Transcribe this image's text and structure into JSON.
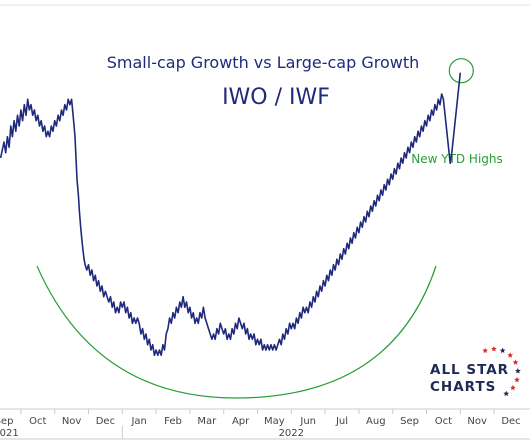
{
  "chart_data": {
    "type": "line",
    "title": "Small-cap Growth vs Large-cap Growth",
    "subtitle": "IWO / IWF",
    "xlabel": "",
    "ylabel": "",
    "x_ticks": [
      "Sep",
      "Oct",
      "Nov",
      "Dec",
      "Jan",
      "Feb",
      "Mar",
      "Apr",
      "May",
      "Jun",
      "Jul",
      "Aug",
      "Sep",
      "Oct",
      "Nov",
      "Dec"
    ],
    "x_tick_month_index": [
      0,
      1,
      2,
      3,
      4,
      5,
      6,
      7,
      8,
      9,
      10,
      11,
      12,
      13,
      14,
      15
    ],
    "year_labels": [
      {
        "label": "2021",
        "month_index": 0
      },
      {
        "label": "2022",
        "month_index": 4
      }
    ],
    "series": [
      {
        "values_month_index": [
          [
            -0.1,
            0.62
          ],
          [
            0.0,
            0.65
          ],
          [
            0.05,
            0.63
          ],
          [
            0.1,
            0.66
          ],
          [
            0.15,
            0.64
          ],
          [
            0.2,
            0.68
          ],
          [
            0.25,
            0.66
          ],
          [
            0.3,
            0.69
          ],
          [
            0.35,
            0.67
          ],
          [
            0.4,
            0.7
          ],
          [
            0.45,
            0.68
          ],
          [
            0.5,
            0.71
          ],
          [
            0.55,
            0.69
          ],
          [
            0.6,
            0.72
          ],
          [
            0.65,
            0.7
          ],
          [
            0.7,
            0.73
          ],
          [
            0.75,
            0.71
          ],
          [
            0.8,
            0.72
          ],
          [
            0.85,
            0.7
          ],
          [
            0.9,
            0.71
          ],
          [
            0.95,
            0.69
          ],
          [
            1.0,
            0.7
          ],
          [
            1.05,
            0.68
          ],
          [
            1.1,
            0.69
          ],
          [
            1.15,
            0.67
          ],
          [
            1.2,
            0.68
          ],
          [
            1.25,
            0.66
          ],
          [
            1.3,
            0.67
          ],
          [
            1.35,
            0.66
          ],
          [
            1.4,
            0.68
          ],
          [
            1.45,
            0.67
          ],
          [
            1.5,
            0.69
          ],
          [
            1.55,
            0.68
          ],
          [
            1.6,
            0.7
          ],
          [
            1.65,
            0.69
          ],
          [
            1.7,
            0.71
          ],
          [
            1.75,
            0.7
          ],
          [
            1.8,
            0.72
          ],
          [
            1.85,
            0.71
          ],
          [
            1.9,
            0.73
          ],
          [
            1.95,
            0.72
          ],
          [
            2.0,
            0.73
          ],
          [
            2.03,
            0.71
          ],
          [
            2.06,
            0.69
          ],
          [
            2.1,
            0.66
          ],
          [
            2.13,
            0.62
          ],
          [
            2.16,
            0.58
          ],
          [
            2.2,
            0.55
          ],
          [
            2.23,
            0.52
          ],
          [
            2.27,
            0.49
          ],
          [
            2.3,
            0.47
          ],
          [
            2.33,
            0.45
          ],
          [
            2.37,
            0.43
          ],
          [
            2.4,
            0.42
          ],
          [
            2.45,
            0.41
          ],
          [
            2.5,
            0.42
          ],
          [
            2.55,
            0.4
          ],
          [
            2.6,
            0.41
          ],
          [
            2.65,
            0.39
          ],
          [
            2.7,
            0.4
          ],
          [
            2.75,
            0.38
          ],
          [
            2.8,
            0.39
          ],
          [
            2.85,
            0.37
          ],
          [
            2.9,
            0.38
          ],
          [
            2.95,
            0.36
          ],
          [
            3.0,
            0.37
          ],
          [
            3.05,
            0.36
          ],
          [
            3.1,
            0.35
          ],
          [
            3.15,
            0.36
          ],
          [
            3.2,
            0.34
          ],
          [
            3.25,
            0.35
          ],
          [
            3.3,
            0.33
          ],
          [
            3.35,
            0.34
          ],
          [
            3.4,
            0.33
          ],
          [
            3.45,
            0.35
          ],
          [
            3.5,
            0.34
          ],
          [
            3.55,
            0.35
          ],
          [
            3.6,
            0.33
          ],
          [
            3.65,
            0.34
          ],
          [
            3.7,
            0.32
          ],
          [
            3.75,
            0.33
          ],
          [
            3.8,
            0.31
          ],
          [
            3.85,
            0.32
          ],
          [
            3.9,
            0.31
          ],
          [
            3.95,
            0.32
          ],
          [
            4.0,
            0.31
          ],
          [
            4.05,
            0.29
          ],
          [
            4.1,
            0.3
          ],
          [
            4.15,
            0.28
          ],
          [
            4.2,
            0.29
          ],
          [
            4.25,
            0.27
          ],
          [
            4.3,
            0.28
          ],
          [
            4.35,
            0.26
          ],
          [
            4.4,
            0.27
          ],
          [
            4.45,
            0.25
          ],
          [
            4.5,
            0.26
          ],
          [
            4.55,
            0.25
          ],
          [
            4.6,
            0.26
          ],
          [
            4.65,
            0.25
          ],
          [
            4.7,
            0.27
          ],
          [
            4.75,
            0.26
          ],
          [
            4.8,
            0.29
          ],
          [
            4.85,
            0.3
          ],
          [
            4.9,
            0.32
          ],
          [
            4.95,
            0.31
          ],
          [
            5.0,
            0.33
          ],
          [
            5.05,
            0.32
          ],
          [
            5.1,
            0.34
          ],
          [
            5.15,
            0.33
          ],
          [
            5.2,
            0.35
          ],
          [
            5.25,
            0.34
          ],
          [
            5.3,
            0.36
          ],
          [
            5.35,
            0.34
          ],
          [
            5.4,
            0.35
          ],
          [
            5.45,
            0.33
          ],
          [
            5.5,
            0.34
          ],
          [
            5.55,
            0.32
          ],
          [
            5.6,
            0.33
          ],
          [
            5.65,
            0.31
          ],
          [
            5.7,
            0.32
          ],
          [
            5.75,
            0.31
          ],
          [
            5.8,
            0.33
          ],
          [
            5.85,
            0.32
          ],
          [
            5.9,
            0.34
          ],
          [
            5.95,
            0.32
          ],
          [
            6.0,
            0.31
          ],
          [
            6.05,
            0.3
          ],
          [
            6.1,
            0.29
          ],
          [
            6.15,
            0.28
          ],
          [
            6.2,
            0.29
          ],
          [
            6.25,
            0.28
          ],
          [
            6.3,
            0.3
          ],
          [
            6.35,
            0.29
          ],
          [
            6.4,
            0.31
          ],
          [
            6.45,
            0.3
          ],
          [
            6.5,
            0.29
          ],
          [
            6.55,
            0.3
          ],
          [
            6.6,
            0.28
          ],
          [
            6.65,
            0.29
          ],
          [
            6.7,
            0.28
          ],
          [
            6.75,
            0.3
          ],
          [
            6.8,
            0.29
          ],
          [
            6.85,
            0.31
          ],
          [
            6.9,
            0.3
          ],
          [
            6.95,
            0.32
          ],
          [
            7.0,
            0.31
          ],
          [
            7.05,
            0.3
          ],
          [
            7.1,
            0.31
          ],
          [
            7.15,
            0.29
          ],
          [
            7.2,
            0.3
          ],
          [
            7.25,
            0.28
          ],
          [
            7.3,
            0.29
          ],
          [
            7.35,
            0.28
          ],
          [
            7.4,
            0.29
          ],
          [
            7.45,
            0.27
          ],
          [
            7.5,
            0.28
          ],
          [
            7.55,
            0.27
          ],
          [
            7.6,
            0.28
          ],
          [
            7.65,
            0.26
          ],
          [
            7.7,
            0.27
          ],
          [
            7.75,
            0.26
          ],
          [
            7.8,
            0.27
          ],
          [
            7.85,
            0.26
          ],
          [
            7.9,
            0.27
          ],
          [
            7.95,
            0.26
          ],
          [
            8.0,
            0.27
          ],
          [
            8.05,
            0.26
          ],
          [
            8.1,
            0.27
          ],
          [
            8.15,
            0.28
          ],
          [
            8.2,
            0.27
          ],
          [
            8.25,
            0.29
          ],
          [
            8.3,
            0.28
          ],
          [
            8.35,
            0.3
          ],
          [
            8.4,
            0.29
          ],
          [
            8.45,
            0.31
          ],
          [
            8.5,
            0.3
          ],
          [
            8.55,
            0.31
          ],
          [
            8.6,
            0.3
          ],
          [
            8.65,
            0.32
          ],
          [
            8.7,
            0.31
          ],
          [
            8.75,
            0.33
          ],
          [
            8.8,
            0.32
          ],
          [
            8.85,
            0.34
          ],
          [
            8.9,
            0.33
          ],
          [
            8.95,
            0.34
          ],
          [
            9.0,
            0.33
          ],
          [
            9.05,
            0.35
          ],
          [
            9.1,
            0.34
          ],
          [
            9.15,
            0.36
          ],
          [
            9.2,
            0.35
          ],
          [
            9.25,
            0.37
          ],
          [
            9.3,
            0.36
          ],
          [
            9.35,
            0.38
          ],
          [
            9.4,
            0.37
          ],
          [
            9.45,
            0.39
          ],
          [
            9.5,
            0.38
          ],
          [
            9.55,
            0.4
          ],
          [
            9.6,
            0.39
          ],
          [
            9.65,
            0.41
          ],
          [
            9.7,
            0.4
          ],
          [
            9.75,
            0.42
          ],
          [
            9.8,
            0.41
          ],
          [
            9.85,
            0.43
          ],
          [
            9.9,
            0.42
          ],
          [
            9.95,
            0.44
          ],
          [
            10.0,
            0.43
          ],
          [
            10.05,
            0.45
          ],
          [
            10.1,
            0.44
          ],
          [
            10.15,
            0.46
          ],
          [
            10.2,
            0.45
          ],
          [
            10.25,
            0.47
          ],
          [
            10.3,
            0.46
          ],
          [
            10.35,
            0.48
          ],
          [
            10.4,
            0.47
          ],
          [
            10.45,
            0.49
          ],
          [
            10.5,
            0.48
          ],
          [
            10.55,
            0.5
          ],
          [
            10.6,
            0.49
          ],
          [
            10.65,
            0.51
          ],
          [
            10.7,
            0.5
          ],
          [
            10.75,
            0.52
          ],
          [
            10.8,
            0.51
          ],
          [
            10.85,
            0.53
          ],
          [
            10.9,
            0.52
          ],
          [
            10.95,
            0.54
          ],
          [
            11.0,
            0.53
          ],
          [
            11.05,
            0.55
          ],
          [
            11.1,
            0.54
          ],
          [
            11.15,
            0.56
          ],
          [
            11.2,
            0.55
          ],
          [
            11.25,
            0.57
          ],
          [
            11.3,
            0.56
          ],
          [
            11.35,
            0.58
          ],
          [
            11.4,
            0.57
          ],
          [
            11.45,
            0.59
          ],
          [
            11.5,
            0.58
          ],
          [
            11.55,
            0.6
          ],
          [
            11.6,
            0.59
          ],
          [
            11.65,
            0.61
          ],
          [
            11.7,
            0.6
          ],
          [
            11.75,
            0.62
          ],
          [
            11.8,
            0.61
          ],
          [
            11.85,
            0.63
          ],
          [
            11.9,
            0.62
          ],
          [
            11.95,
            0.64
          ],
          [
            12.0,
            0.63
          ],
          [
            12.05,
            0.65
          ],
          [
            12.1,
            0.64
          ],
          [
            12.15,
            0.66
          ],
          [
            12.2,
            0.65
          ],
          [
            12.25,
            0.67
          ],
          [
            12.3,
            0.66
          ],
          [
            12.35,
            0.68
          ],
          [
            12.4,
            0.67
          ],
          [
            12.45,
            0.69
          ],
          [
            12.5,
            0.68
          ],
          [
            12.55,
            0.7
          ],
          [
            12.6,
            0.69
          ],
          [
            12.65,
            0.71
          ],
          [
            12.7,
            0.7
          ],
          [
            12.75,
            0.72
          ],
          [
            12.8,
            0.71
          ],
          [
            12.85,
            0.73
          ],
          [
            12.9,
            0.72
          ],
          [
            12.95,
            0.74
          ],
          [
            13.0,
            0.73
          ],
          [
            13.05,
            0.7
          ],
          [
            13.1,
            0.67
          ],
          [
            13.15,
            0.64
          ],
          [
            13.2,
            0.61
          ],
          [
            13.25,
            0.63
          ],
          [
            13.3,
            0.66
          ],
          [
            13.35,
            0.69
          ],
          [
            13.4,
            0.72
          ],
          [
            13.45,
            0.75
          ],
          [
            13.5,
            0.78
          ]
        ]
      }
    ],
    "ylim": [
      0.2,
      0.8
    ],
    "grid": false,
    "annotations": [
      {
        "text": "New YTD Highs"
      }
    ],
    "highlight_curve": true,
    "highlight_circle_at_end": true
  },
  "logo": {
    "line1": "ALL STAR",
    "line2": "CHARTS"
  },
  "colors": {
    "line": "#1f2a7c",
    "annotation": "#2a9d3a",
    "title": "#1f2a7c",
    "logo_text": "#1f2a55",
    "logo_star_red": "#d62b2b",
    "logo_star_blue": "#1f2a55"
  }
}
